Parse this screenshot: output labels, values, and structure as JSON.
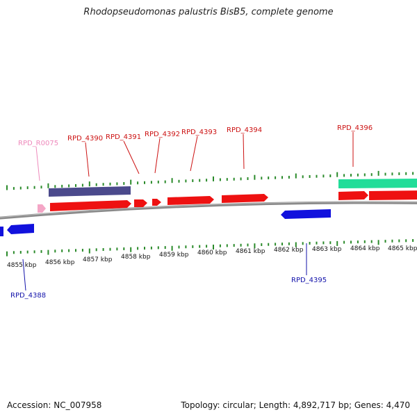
{
  "title": "Rhodopseudomonas palustris BisB5, complete genome",
  "accession": "Accession: NC_007958",
  "summary": "Topology: circular; Length: 4,892,717 bp; Genes: 4,470",
  "colors": {
    "forward_gene": "#ee1111",
    "reverse_gene": "#1111dd",
    "rna": "#f4a6c6",
    "feature_purple": "#4b4a8c",
    "feature_teal": "#22dd99",
    "tick": "#2a8a2a",
    "backbone": "#8a8a8a",
    "label_forward": "#cc1111",
    "label_reverse": "#1111aa",
    "label_rna": "#ee88bb"
  },
  "kbp_labels": [
    "4855 kbp",
    "4856 kbp",
    "4857 kbp",
    "4858 kbp",
    "4859 kbp",
    "4860 kbp",
    "4861 kbp",
    "4862 kbp",
    "4863 kbp",
    "4864 kbp",
    "4865 kbp"
  ],
  "gene_labels": [
    {
      "text": "RPD_R0075",
      "type": "rna"
    },
    {
      "text": "RPD_4390",
      "type": "forward"
    },
    {
      "text": "RPD_4391",
      "type": "forward"
    },
    {
      "text": "RPD_4392",
      "type": "forward"
    },
    {
      "text": "RPD_4393",
      "type": "forward"
    },
    {
      "text": "RPD_4394",
      "type": "forward"
    },
    {
      "text": "RPD_4396",
      "type": "forward"
    },
    {
      "text": "RPD_4395",
      "type": "reverse"
    },
    {
      "text": "RPD_4388",
      "type": "reverse"
    }
  ]
}
